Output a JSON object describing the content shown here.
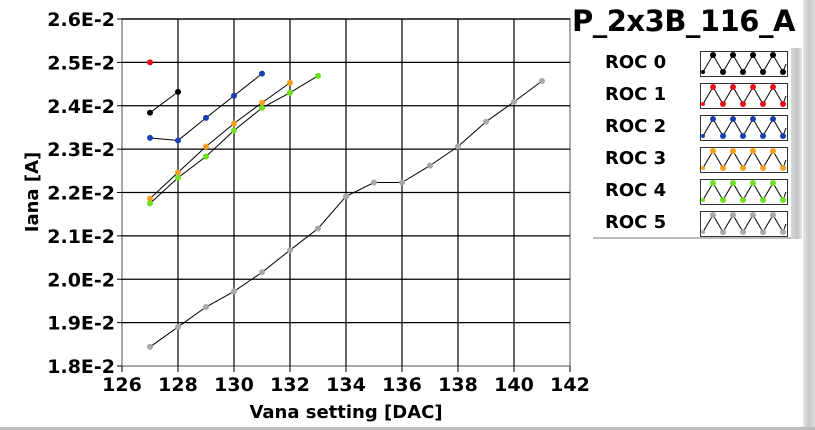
{
  "title": "P_2x3B_116_A",
  "chart_data": {
    "type": "line",
    "title": "P_2x3B_116_A",
    "xlabel": "Vana setting [DAC]",
    "ylabel": "Iana [A]",
    "xlim": [
      126,
      142
    ],
    "ylim": [
      0.018,
      0.026
    ],
    "xticks": [
      126,
      128,
      130,
      132,
      134,
      136,
      138,
      140,
      142
    ],
    "xtick_labels": [
      "126",
      "128",
      "130",
      "132",
      "134",
      "136",
      "138",
      "140",
      "142"
    ],
    "yticks": [
      0.018,
      0.019,
      0.02,
      0.021,
      0.022,
      0.023,
      0.024,
      0.025,
      0.026
    ],
    "ytick_labels": [
      "1.8E-2",
      "1.9E-2",
      "2.0E-2",
      "2.1E-2",
      "2.2E-2",
      "2.3E-2",
      "2.4E-2",
      "2.5E-2",
      "2.6E-2"
    ],
    "grid": true,
    "legend_position": "right",
    "series": [
      {
        "name": "ROC 0",
        "color": "#000000",
        "x": [
          127,
          128
        ],
        "y": [
          0.02384,
          0.02432
        ]
      },
      {
        "name": "ROC 1",
        "color": "#e8101a",
        "x": [
          127
        ],
        "y": [
          0.025
        ]
      },
      {
        "name": "ROC 2",
        "color": "#1a3fb0",
        "x": [
          127,
          128,
          129,
          130,
          131
        ],
        "y": [
          0.02326,
          0.0232,
          0.02372,
          0.02423,
          0.02474
        ]
      },
      {
        "name": "ROC 3",
        "color": "#f5a020",
        "x": [
          127,
          128,
          129,
          130,
          131,
          132
        ],
        "y": [
          0.02186,
          0.02246,
          0.02306,
          0.02359,
          0.02407,
          0.02453
        ]
      },
      {
        "name": "ROC 4",
        "color": "#70e020",
        "x": [
          127,
          128,
          129,
          130,
          131,
          132,
          133
        ],
        "y": [
          0.02175,
          0.02234,
          0.02283,
          0.02343,
          0.02395,
          0.0243,
          0.02469
        ]
      },
      {
        "name": "ROC 5",
        "color": "#a8a8a8",
        "x": [
          127,
          128,
          129,
          130,
          131,
          132,
          133,
          134,
          135,
          136,
          137,
          138,
          139,
          140,
          141
        ],
        "y": [
          0.01844,
          0.0189,
          0.01936,
          0.01972,
          0.02016,
          0.02067,
          0.02117,
          0.02191,
          0.02223,
          0.02223,
          0.02262,
          0.02306,
          0.02363,
          0.02409,
          0.02457
        ]
      }
    ]
  }
}
